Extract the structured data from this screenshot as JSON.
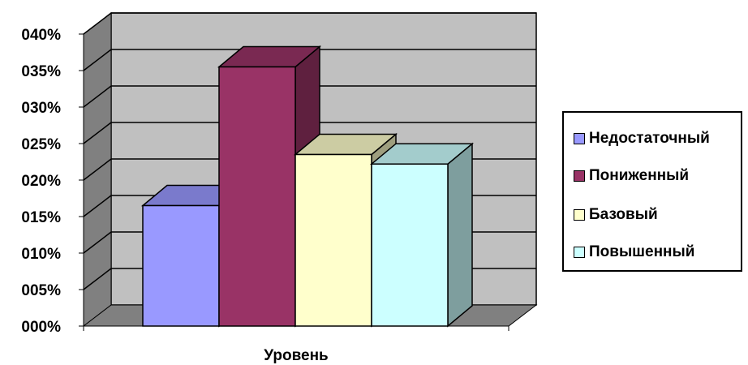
{
  "chart_data": {
    "type": "bar",
    "xlabel": "Уровень",
    "categories": [
      ""
    ],
    "ylim": [
      0,
      0.4
    ],
    "yticks": [
      "000%",
      "005%",
      "010%",
      "015%",
      "020%",
      "025%",
      "030%",
      "035%",
      "040%"
    ],
    "grid": true,
    "legend_position": "right",
    "series": [
      {
        "name": "Недостаточный",
        "values": [
          0.165
        ],
        "color": "#9999ff"
      },
      {
        "name": "Пониженный",
        "values": [
          0.355
        ],
        "color": "#993366"
      },
      {
        "name": "Базовый",
        "values": [
          0.235
        ],
        "color": "#ffffcc"
      },
      {
        "name": "Повышенный",
        "values": [
          0.222
        ],
        "color": "#ccffff"
      }
    ],
    "wall_color": "#c0c0c0"
  }
}
